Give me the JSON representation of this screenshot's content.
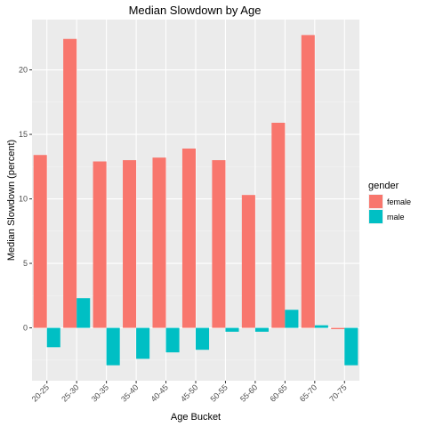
{
  "chart_data": {
    "type": "bar",
    "title": "Median Slowdown by Age",
    "xlabel": "Age Bucket",
    "ylabel": "Median Slowdown (percent)",
    "categories": [
      "20-25",
      "25-30",
      "30-35",
      "35-40",
      "40-45",
      "45-50",
      "50-55",
      "55-60",
      "60-65",
      "65-70",
      "70-75"
    ],
    "series": [
      {
        "name": "female",
        "color": "#F8766D",
        "values": [
          13.4,
          22.4,
          12.9,
          13.0,
          13.2,
          13.9,
          13.0,
          10.3,
          15.9,
          22.7,
          -0.1
        ]
      },
      {
        "name": "male",
        "color": "#00BFC4",
        "values": [
          -1.5,
          2.3,
          -2.9,
          -2.4,
          -1.9,
          -1.7,
          -0.3,
          -0.3,
          1.4,
          0.2,
          -2.9
        ]
      }
    ],
    "ylim": [
      -4.1,
      23.9
    ],
    "yticks": [
      0,
      5,
      10,
      15,
      20
    ],
    "ytick_labels": [
      "0",
      "5",
      "10",
      "15",
      "20"
    ],
    "legend": {
      "title": "gender",
      "position": "right"
    },
    "grid": true,
    "panel_background": "#EBEBEB"
  }
}
